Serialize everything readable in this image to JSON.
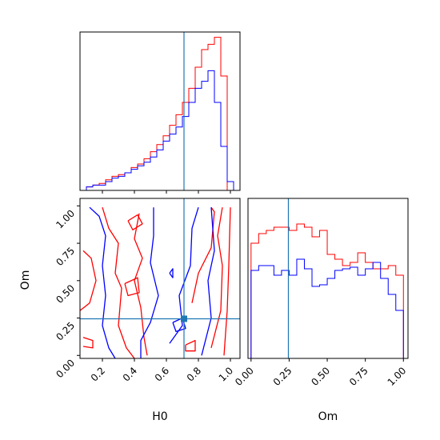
{
  "chart_data": {
    "type": "corner",
    "parameters": [
      "H0",
      "Om"
    ],
    "truth": {
      "H0": 0.71,
      "Om": 0.245
    },
    "colors": {
      "series_red": "#ff0000",
      "series_blue": "#0000ff",
      "truth_line": "#1f77b4"
    },
    "grid": false,
    "legend": "none",
    "histogram_H0": {
      "xlim": [
        0.06,
        1.06
      ],
      "bin_edges": [
        0.1,
        0.14,
        0.18,
        0.22,
        0.26,
        0.3,
        0.34,
        0.38,
        0.42,
        0.46,
        0.5,
        0.54,
        0.58,
        0.62,
        0.66,
        0.7,
        0.74,
        0.78,
        0.82,
        0.86,
        0.9,
        0.94,
        0.98,
        1.02
      ],
      "red": [
        0.02,
        0.03,
        0.04,
        0.06,
        0.08,
        0.09,
        0.1,
        0.13,
        0.15,
        0.18,
        0.22,
        0.26,
        0.31,
        0.37,
        0.43,
        0.5,
        0.58,
        0.7,
        0.8,
        0.83,
        0.87,
        0.65,
        0
      ],
      "blue": [
        0.02,
        0.03,
        0.03,
        0.05,
        0.07,
        0.08,
        0.1,
        0.12,
        0.14,
        0.16,
        0.19,
        0.23,
        0.28,
        0.32,
        0.36,
        0.42,
        0.5,
        0.58,
        0.62,
        0.68,
        0.5,
        0.25,
        0.05
      ],
      "ymax": 0.9
    },
    "histogram_Om": {
      "xlim": [
        -0.02,
        1.03
      ],
      "bin_edges": [
        0,
        0.05,
        0.1,
        0.15,
        0.2,
        0.25,
        0.3,
        0.35,
        0.4,
        0.45,
        0.5,
        0.55,
        0.6,
        0.65,
        0.7,
        0.75,
        0.8,
        0.85,
        0.9,
        0.95,
        1.0
      ],
      "red": [
        0.72,
        0.78,
        0.8,
        0.82,
        0.82,
        0.8,
        0.84,
        0.82,
        0.76,
        0.8,
        0.65,
        0.62,
        0.58,
        0.6,
        0.66,
        0.6,
        0.56,
        0.56,
        0.58,
        0.52
      ],
      "blue": [
        0.55,
        0.58,
        0.58,
        0.52,
        0.55,
        0.52,
        0.62,
        0.56,
        0.45,
        0.46,
        0.5,
        0.55,
        0.56,
        0.57,
        0.52,
        0.56,
        0.6,
        0.5,
        0.4,
        0.3
      ],
      "ymax": 1.0
    },
    "contour_panel": {
      "xlim": [
        0.06,
        1.06
      ],
      "ylim": [
        -0.02,
        1.05
      ],
      "red_contours": [
        [
          [
            0.06,
            0.3
          ],
          [
            0.12,
            0.35
          ],
          [
            0.16,
            0.5
          ],
          [
            0.13,
            0.65
          ],
          [
            0.08,
            0.7
          ]
        ],
        [
          [
            0.2,
            0.99
          ],
          [
            0.24,
            0.85
          ],
          [
            0.3,
            0.75
          ],
          [
            0.28,
            0.55
          ],
          [
            0.32,
            0.45
          ],
          [
            0.3,
            0.2
          ],
          [
            0.35,
            0.05
          ],
          [
            0.4,
            -0.02
          ]
        ],
        [
          [
            0.43,
            0.95
          ],
          [
            0.4,
            0.78
          ],
          [
            0.45,
            0.65
          ],
          [
            0.4,
            0.5
          ],
          [
            0.44,
            0.32
          ],
          [
            0.46,
            0.12
          ],
          [
            0.48,
            0.0
          ]
        ],
        [
          [
            0.08,
            0.12
          ],
          [
            0.14,
            0.1
          ],
          [
            0.14,
            0.05
          ],
          [
            0.08,
            0.06
          ]
        ],
        [
          [
            0.34,
            0.48
          ],
          [
            0.42,
            0.52
          ],
          [
            0.43,
            0.42
          ],
          [
            0.36,
            0.4
          ],
          [
            0.34,
            0.48
          ]
        ],
        [
          [
            0.36,
            0.9
          ],
          [
            0.42,
            0.94
          ],
          [
            0.45,
            0.88
          ],
          [
            0.39,
            0.84
          ],
          [
            0.36,
            0.9
          ]
        ],
        [
          [
            0.72,
            0.07
          ],
          [
            0.78,
            0.1
          ],
          [
            0.78,
            0.03
          ],
          [
            0.72,
            0.03
          ],
          [
            0.72,
            0.07
          ]
        ],
        [
          [
            0.76,
            0.35
          ],
          [
            0.8,
            0.55
          ],
          [
            0.88,
            0.72
          ],
          [
            0.9,
            0.96
          ],
          [
            0.88,
            0.99
          ]
        ],
        [
          [
            0.88,
            0.05
          ],
          [
            0.94,
            0.3
          ],
          [
            0.95,
            0.6
          ],
          [
            0.92,
            0.8
          ],
          [
            0.95,
            0.99
          ]
        ],
        [
          [
            0.96,
            0.0
          ],
          [
            0.98,
            0.3
          ],
          [
            0.99,
            0.6
          ],
          [
            1.0,
            0.99
          ]
        ]
      ],
      "blue_contours": [
        [
          [
            0.12,
            0.99
          ],
          [
            0.18,
            0.93
          ],
          [
            0.22,
            0.8
          ],
          [
            0.2,
            0.6
          ],
          [
            0.22,
            0.4
          ],
          [
            0.2,
            0.2
          ],
          [
            0.24,
            0.05
          ],
          [
            0.28,
            -0.02
          ]
        ],
        [
          [
            0.44,
            -0.02
          ],
          [
            0.44,
            0.1
          ],
          [
            0.5,
            0.22
          ],
          [
            0.55,
            0.4
          ],
          [
            0.5,
            0.62
          ],
          [
            0.52,
            0.8
          ],
          [
            0.52,
            0.99
          ]
        ],
        [
          [
            0.62,
            0.08
          ],
          [
            0.7,
            0.2
          ],
          [
            0.68,
            0.4
          ],
          [
            0.75,
            0.6
          ],
          [
            0.76,
            0.85
          ],
          [
            0.8,
            0.99
          ]
        ],
        [
          [
            0.82,
            0.0
          ],
          [
            0.88,
            0.25
          ],
          [
            0.86,
            0.5
          ],
          [
            0.9,
            0.7
          ],
          [
            0.88,
            0.99
          ]
        ],
        [
          [
            0.62,
            0.55
          ],
          [
            0.64,
            0.58
          ],
          [
            0.64,
            0.52
          ],
          [
            0.62,
            0.55
          ]
        ],
        [
          [
            0.64,
            0.22
          ],
          [
            0.7,
            0.25
          ],
          [
            0.72,
            0.18
          ],
          [
            0.66,
            0.16
          ],
          [
            0.64,
            0.22
          ]
        ]
      ]
    },
    "tick_labels_H0": [
      "0.2",
      "0.4",
      "0.6",
      "0.8",
      "1.0"
    ],
    "tick_values_H0": [
      0.2,
      0.4,
      0.6,
      0.8,
      1.0
    ],
    "tick_labels_Om": [
      "0.00",
      "0.25",
      "0.50",
      "0.75",
      "1.00"
    ],
    "tick_values_Om": [
      0.0,
      0.25,
      0.5,
      0.75,
      1.0
    ],
    "xlabel_left": "H0",
    "xlabel_right": "Om",
    "ylabel_left": "Om"
  }
}
